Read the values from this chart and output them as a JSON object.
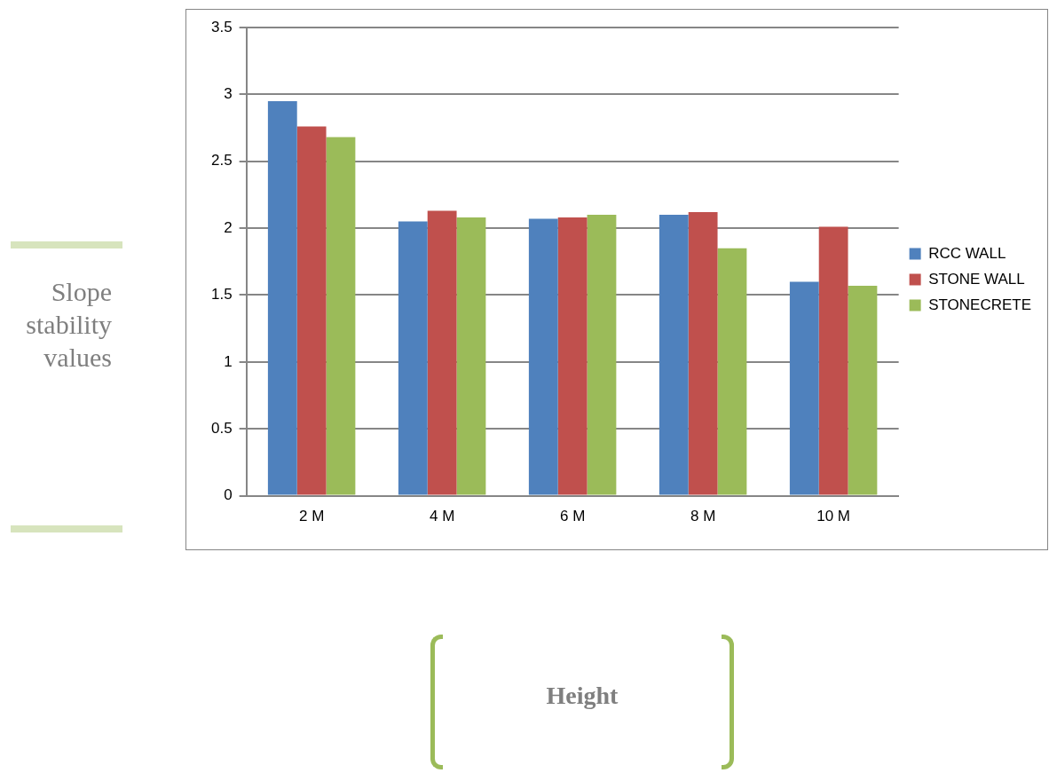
{
  "chart_data": {
    "type": "bar",
    "annotations": [
      "Height"
    ],
    "ylabel": "Slope stability values",
    "categories": [
      "2 M",
      "4 M",
      "6 M",
      "8 M",
      "10 M"
    ],
    "series": [
      {
        "name": "RCC WALL",
        "color": "#4f81bd",
        "values": [
          2.95,
          2.05,
          2.07,
          2.1,
          1.6
        ]
      },
      {
        "name": "STONE WALL",
        "color": "#c0504d",
        "values": [
          2.76,
          2.13,
          2.08,
          2.12,
          2.01
        ]
      },
      {
        "name": "STONECRETE",
        "color": "#9bbb59",
        "values": [
          2.68,
          2.08,
          2.1,
          1.85,
          1.57
        ]
      }
    ],
    "ylim": [
      0,
      3.5
    ],
    "yticks": [
      0,
      0.5,
      1,
      1.5,
      2,
      2.5,
      3,
      3.5
    ],
    "grid": "y",
    "legend": "right"
  }
}
